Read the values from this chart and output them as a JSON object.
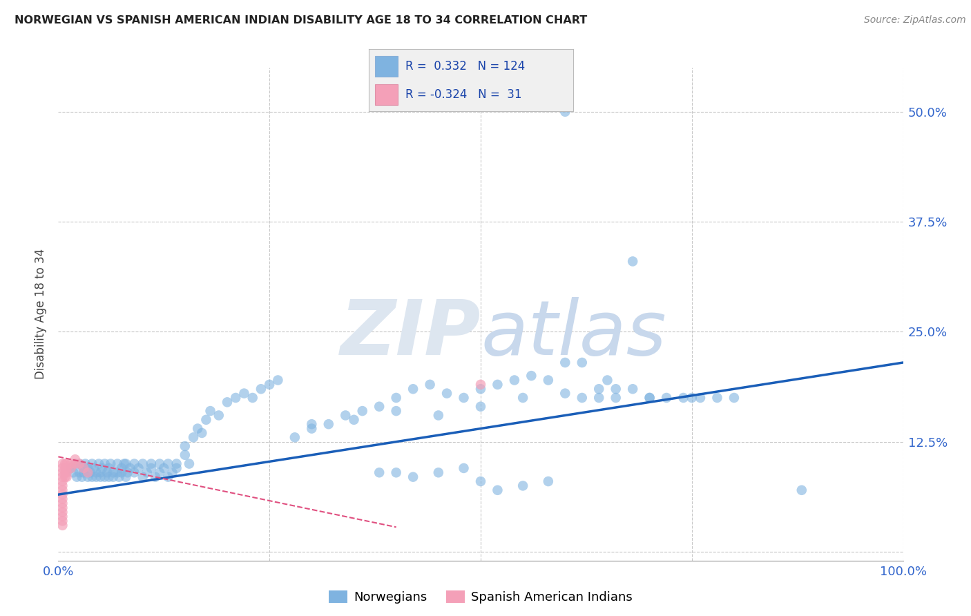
{
  "title": "NORWEGIAN VS SPANISH AMERICAN INDIAN DISABILITY AGE 18 TO 34 CORRELATION CHART",
  "source": "Source: ZipAtlas.com",
  "ylabel_label": "Disability Age 18 to 34",
  "xlim": [
    0.0,
    1.0
  ],
  "ylim": [
    -0.01,
    0.55
  ],
  "x_ticks": [
    0.0,
    0.25,
    0.5,
    0.75,
    1.0
  ],
  "x_tick_labels": [
    "0.0%",
    "",
    "",
    "",
    "100.0%"
  ],
  "y_ticks": [
    0.0,
    0.125,
    0.25,
    0.375,
    0.5
  ],
  "y_tick_labels": [
    "",
    "12.5%",
    "25.0%",
    "37.5%",
    "50.0%"
  ],
  "background_color": "#ffffff",
  "grid_color": "#c8c8c8",
  "blue_color": "#7fb3e0",
  "pink_color": "#f4a0b8",
  "blue_line_color": "#1a5eb8",
  "pink_line_color": "#e05080",
  "watermark_color": "#dde6f0",
  "legend_R1": "0.332",
  "legend_N1": "124",
  "legend_R2": "-0.324",
  "legend_N2": "31",
  "blue_line_x0": 0.0,
  "blue_line_x1": 1.0,
  "blue_line_y0": 0.065,
  "blue_line_y1": 0.215,
  "pink_line_x0": 0.0,
  "pink_line_x1": 0.4,
  "pink_line_y0": 0.108,
  "pink_line_y1": 0.028,
  "blue_scatter_x": [
    0.015,
    0.018,
    0.02,
    0.022,
    0.025,
    0.025,
    0.028,
    0.03,
    0.03,
    0.032,
    0.035,
    0.035,
    0.038,
    0.04,
    0.04,
    0.042,
    0.045,
    0.045,
    0.048,
    0.05,
    0.05,
    0.052,
    0.055,
    0.055,
    0.058,
    0.06,
    0.06,
    0.062,
    0.065,
    0.065,
    0.07,
    0.07,
    0.072,
    0.075,
    0.075,
    0.078,
    0.08,
    0.08,
    0.082,
    0.085,
    0.09,
    0.09,
    0.095,
    0.1,
    0.1,
    0.105,
    0.11,
    0.11,
    0.115,
    0.12,
    0.12,
    0.125,
    0.13,
    0.13,
    0.135,
    0.14,
    0.14,
    0.15,
    0.15,
    0.155,
    0.16,
    0.165,
    0.17,
    0.175,
    0.18,
    0.19,
    0.2,
    0.21,
    0.22,
    0.23,
    0.24,
    0.25,
    0.26,
    0.28,
    0.3,
    0.32,
    0.34,
    0.36,
    0.38,
    0.4,
    0.42,
    0.44,
    0.46,
    0.48,
    0.5,
    0.52,
    0.54,
    0.56,
    0.58,
    0.6,
    0.62,
    0.64,
    0.66,
    0.68,
    0.7,
    0.72,
    0.74,
    0.76,
    0.78,
    0.8,
    0.3,
    0.35,
    0.4,
    0.45,
    0.5,
    0.55,
    0.6,
    0.65,
    0.7,
    0.75,
    0.68,
    0.6,
    0.62,
    0.64,
    0.66,
    0.5,
    0.52,
    0.55,
    0.58,
    0.48,
    0.45,
    0.42,
    0.4,
    0.38,
    0.88
  ],
  "blue_scatter_y": [
    0.095,
    0.09,
    0.1,
    0.085,
    0.09,
    0.1,
    0.085,
    0.09,
    0.095,
    0.1,
    0.085,
    0.095,
    0.09,
    0.085,
    0.1,
    0.095,
    0.09,
    0.085,
    0.1,
    0.085,
    0.09,
    0.095,
    0.085,
    0.1,
    0.09,
    0.085,
    0.095,
    0.1,
    0.085,
    0.09,
    0.09,
    0.1,
    0.085,
    0.09,
    0.095,
    0.1,
    0.085,
    0.1,
    0.09,
    0.095,
    0.09,
    0.1,
    0.095,
    0.085,
    0.1,
    0.09,
    0.1,
    0.095,
    0.085,
    0.1,
    0.09,
    0.095,
    0.085,
    0.1,
    0.09,
    0.1,
    0.095,
    0.12,
    0.11,
    0.1,
    0.13,
    0.14,
    0.135,
    0.15,
    0.16,
    0.155,
    0.17,
    0.175,
    0.18,
    0.175,
    0.185,
    0.19,
    0.195,
    0.13,
    0.14,
    0.145,
    0.155,
    0.16,
    0.165,
    0.175,
    0.185,
    0.19,
    0.18,
    0.175,
    0.185,
    0.19,
    0.195,
    0.2,
    0.195,
    0.215,
    0.175,
    0.185,
    0.175,
    0.185,
    0.175,
    0.175,
    0.175,
    0.175,
    0.175,
    0.175,
    0.145,
    0.15,
    0.16,
    0.155,
    0.165,
    0.175,
    0.18,
    0.195,
    0.175,
    0.175,
    0.33,
    0.5,
    0.215,
    0.175,
    0.185,
    0.08,
    0.07,
    0.075,
    0.08,
    0.095,
    0.09,
    0.085,
    0.09,
    0.09,
    0.07
  ],
  "pink_scatter_x": [
    0.005,
    0.005,
    0.005,
    0.005,
    0.005,
    0.005,
    0.005,
    0.005,
    0.005,
    0.005,
    0.005,
    0.005,
    0.005,
    0.005,
    0.005,
    0.008,
    0.008,
    0.008,
    0.008,
    0.01,
    0.01,
    0.01,
    0.01,
    0.015,
    0.015,
    0.02,
    0.02,
    0.025,
    0.03,
    0.035,
    0.5
  ],
  "pink_scatter_y": [
    0.1,
    0.095,
    0.09,
    0.085,
    0.08,
    0.075,
    0.07,
    0.065,
    0.06,
    0.055,
    0.05,
    0.045,
    0.04,
    0.035,
    0.03,
    0.1,
    0.095,
    0.09,
    0.085,
    0.1,
    0.095,
    0.09,
    0.085,
    0.1,
    0.095,
    0.105,
    0.1,
    0.1,
    0.095,
    0.09,
    0.19
  ]
}
